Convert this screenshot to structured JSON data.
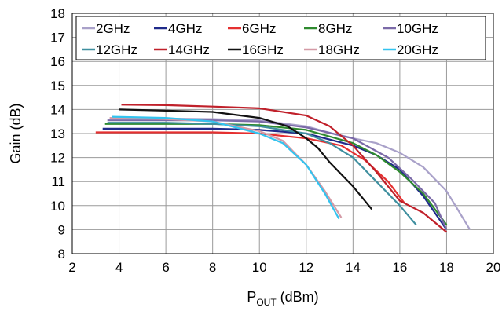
{
  "chart_data": {
    "type": "line",
    "xlabel": {
      "main": "P",
      "sub": "OUT",
      "unit": " (dBm)"
    },
    "ylabel": "Gain (dB)",
    "xlim": [
      2,
      20
    ],
    "ylim": [
      8,
      18
    ],
    "xticks": [
      2,
      4,
      6,
      8,
      10,
      12,
      14,
      16,
      18,
      20
    ],
    "yticks": [
      8,
      9,
      10,
      11,
      12,
      13,
      14,
      15,
      16,
      17,
      18
    ],
    "grid": true,
    "legend_position": "top",
    "series": [
      {
        "name": "2GHz",
        "color": "#a9a1c9",
        "points": [
          [
            3.7,
            13.65
          ],
          [
            6,
            13.62
          ],
          [
            8,
            13.6
          ],
          [
            10,
            13.55
          ],
          [
            12,
            13.3
          ],
          [
            13.5,
            12.9
          ],
          [
            15,
            12.6
          ],
          [
            16,
            12.2
          ],
          [
            17,
            11.6
          ],
          [
            18,
            10.6
          ],
          [
            19,
            9.0
          ]
        ]
      },
      {
        "name": "4GHz",
        "color": "#1f2a8a",
        "points": [
          [
            3.3,
            13.2
          ],
          [
            6,
            13.2
          ],
          [
            8,
            13.2
          ],
          [
            10,
            13.15
          ],
          [
            12,
            13.0
          ],
          [
            14,
            12.5
          ],
          [
            15,
            12.1
          ],
          [
            16,
            11.5
          ],
          [
            17,
            10.4
          ],
          [
            18,
            9.0
          ]
        ]
      },
      {
        "name": "6GHz",
        "color": "#e53030",
        "points": [
          [
            3,
            13.05
          ],
          [
            6,
            13.05
          ],
          [
            8,
            13.05
          ],
          [
            10,
            13.0
          ],
          [
            12,
            12.8
          ],
          [
            13.5,
            12.5
          ],
          [
            14.5,
            11.9
          ],
          [
            15.5,
            11.0
          ],
          [
            16.2,
            10.1
          ]
        ]
      },
      {
        "name": "8GHz",
        "color": "#2e8a2e",
        "points": [
          [
            3.4,
            13.4
          ],
          [
            6,
            13.4
          ],
          [
            8,
            13.4
          ],
          [
            10,
            13.35
          ],
          [
            12,
            13.15
          ],
          [
            14,
            12.6
          ],
          [
            15,
            12.1
          ],
          [
            16,
            11.4
          ],
          [
            17,
            10.5
          ],
          [
            18,
            9.2
          ]
        ]
      },
      {
        "name": "10GHz",
        "color": "#7b6aa8",
        "points": [
          [
            3.5,
            13.55
          ],
          [
            6,
            13.55
          ],
          [
            8,
            13.55
          ],
          [
            10,
            13.5
          ],
          [
            12,
            13.25
          ],
          [
            14,
            12.8
          ],
          [
            15.5,
            12.0
          ],
          [
            16.5,
            11.1
          ],
          [
            17.5,
            10.1
          ],
          [
            18,
            9.0
          ]
        ]
      },
      {
        "name": "12GHz",
        "color": "#3f8f9f",
        "points": [
          [
            3.5,
            13.45
          ],
          [
            6,
            13.45
          ],
          [
            8,
            13.4
          ],
          [
            10,
            13.3
          ],
          [
            12,
            13.0
          ],
          [
            13,
            12.6
          ],
          [
            14,
            12.0
          ],
          [
            15,
            11.0
          ],
          [
            16,
            10.0
          ],
          [
            16.7,
            9.2
          ]
        ]
      },
      {
        "name": "14GHz",
        "color": "#c0202a",
        "points": [
          [
            4.1,
            14.2
          ],
          [
            6,
            14.18
          ],
          [
            8,
            14.12
          ],
          [
            10,
            14.05
          ],
          [
            12,
            13.75
          ],
          [
            13,
            13.3
          ],
          [
            14,
            12.5
          ],
          [
            15,
            11.4
          ],
          [
            16,
            10.2
          ],
          [
            17,
            9.7
          ],
          [
            18,
            8.9
          ]
        ]
      },
      {
        "name": "16GHz",
        "color": "#111111",
        "points": [
          [
            4,
            14.0
          ],
          [
            6,
            13.95
          ],
          [
            8,
            13.9
          ],
          [
            10,
            13.65
          ],
          [
            11.2,
            13.3
          ],
          [
            12,
            12.8
          ],
          [
            12.5,
            12.4
          ],
          [
            13,
            11.8
          ],
          [
            14,
            10.8
          ],
          [
            14.8,
            9.85
          ]
        ]
      },
      {
        "name": "18GHz",
        "color": "#d49aa6",
        "points": [
          [
            3.6,
            13.65
          ],
          [
            6,
            13.6
          ],
          [
            8,
            13.5
          ],
          [
            10,
            13.1
          ],
          [
            11,
            12.7
          ],
          [
            12,
            11.7
          ],
          [
            12.8,
            10.6
          ],
          [
            13.5,
            9.5
          ]
        ]
      },
      {
        "name": "20GHz",
        "color": "#33c3ef",
        "points": [
          [
            3.7,
            13.7
          ],
          [
            6,
            13.65
          ],
          [
            8,
            13.5
          ],
          [
            10,
            13.0
          ],
          [
            11,
            12.6
          ],
          [
            12,
            11.7
          ],
          [
            12.8,
            10.5
          ],
          [
            13.4,
            9.45
          ]
        ]
      }
    ]
  }
}
